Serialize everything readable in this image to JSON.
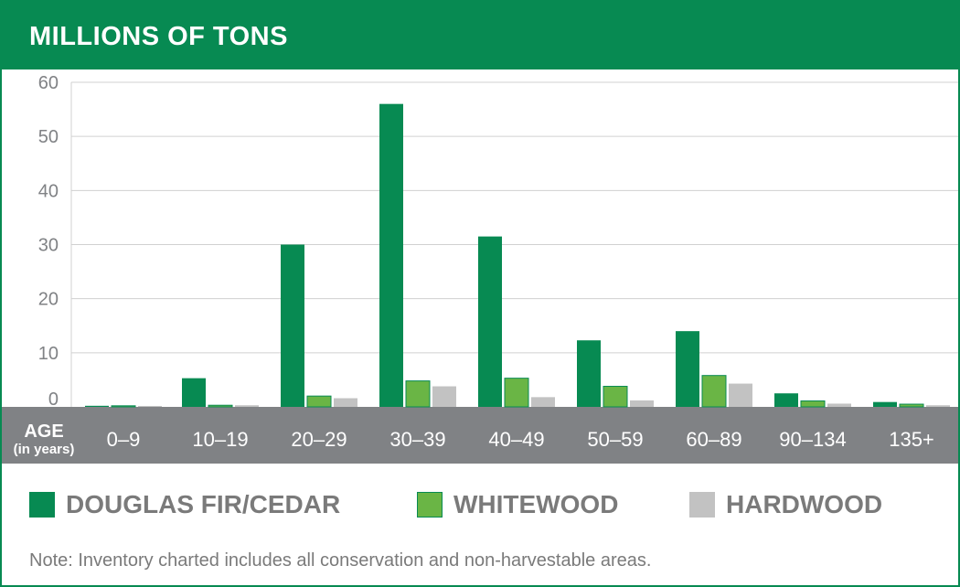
{
  "header": {
    "title": "MILLIONS OF TONS"
  },
  "colors": {
    "header_bg": "#078a52",
    "axis_band": "#808285",
    "douglas_fir_cedar": "#078a52",
    "whitewood": "#6ab545",
    "hardwood": "#c2c2c2",
    "gridline": "#d0d0d0",
    "tick_text": "#808285"
  },
  "chart_data": {
    "type": "bar",
    "title": "MILLIONS OF TONS",
    "xlabel": "AGE",
    "xlabel_sub": "(in years)",
    "ylabel": "",
    "ylim": [
      0,
      60
    ],
    "yticks": [
      "0",
      "10",
      "20",
      "30",
      "40",
      "50",
      "60"
    ],
    "categories": [
      "0–9",
      "10–19",
      "20–29",
      "30–39",
      "40–49",
      "50–59",
      "60–89",
      "90–134",
      "135+"
    ],
    "series": [
      {
        "name": "DOUGLAS FIR/CEDAR",
        "color": "#078a52",
        "values": [
          0.2,
          5.3,
          30,
          56,
          31.5,
          12.3,
          14,
          2.5,
          0.9
        ]
      },
      {
        "name": "WHITEWOOD",
        "color": "#6ab545",
        "values": [
          0.2,
          0.3,
          2,
          4.8,
          5.3,
          3.8,
          5.8,
          1.1,
          0.5
        ]
      },
      {
        "name": "HARDWOOD",
        "color": "#c2c2c2",
        "values": [
          0.1,
          0.3,
          1.6,
          3.8,
          1.8,
          1.2,
          4.3,
          0.6,
          0.3
        ]
      }
    ],
    "grid": true,
    "legend_position": "bottom"
  },
  "note": "Note: Inventory charted includes all conservation and non-harvestable areas."
}
